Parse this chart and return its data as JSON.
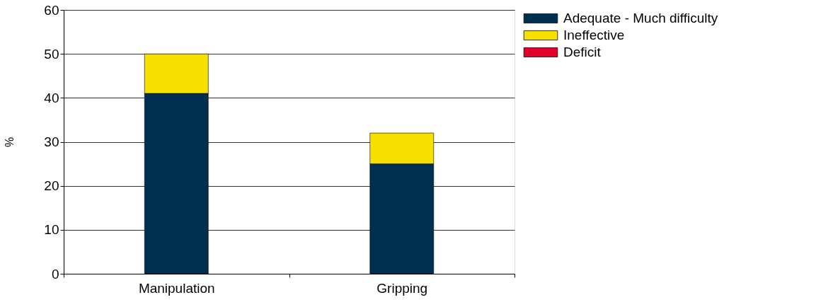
{
  "chart_data": {
    "type": "bar",
    "stacked": true,
    "ylabel": "%",
    "categories": [
      "Manipulation",
      "Gripping"
    ],
    "series": [
      {
        "name": "Adequate - Much difficulty",
        "color": "#003050",
        "values": [
          41,
          25
        ]
      },
      {
        "name": "Ineffective",
        "color": "#f5e000",
        "values": [
          9,
          7
        ]
      },
      {
        "name": "Deficit",
        "color": "#e2002a",
        "values": [
          null,
          null
        ]
      }
    ],
    "ylim": [
      0,
      60
    ],
    "yticks": [
      0,
      10,
      20,
      30,
      40,
      50,
      60
    ],
    "grid": "y",
    "legend": "top right"
  }
}
